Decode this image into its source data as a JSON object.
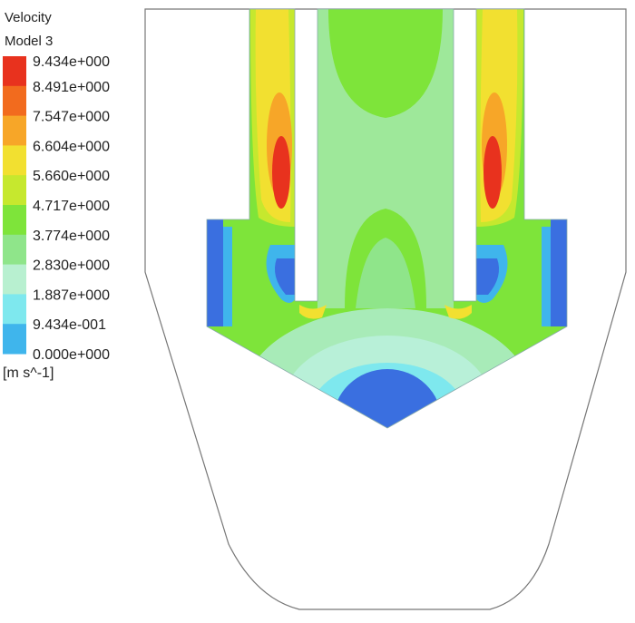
{
  "legend": {
    "title": "Velocity",
    "subtitle": "Model 3",
    "levels": [
      "9.434e+000",
      "8.491e+000",
      "7.547e+000",
      "6.604e+000",
      "5.660e+000",
      "4.717e+000",
      "3.774e+000",
      "2.830e+000",
      "1.887e+000",
      "9.434e-001",
      "0.000e+000"
    ],
    "unit": "[m s^-1]"
  }
}
